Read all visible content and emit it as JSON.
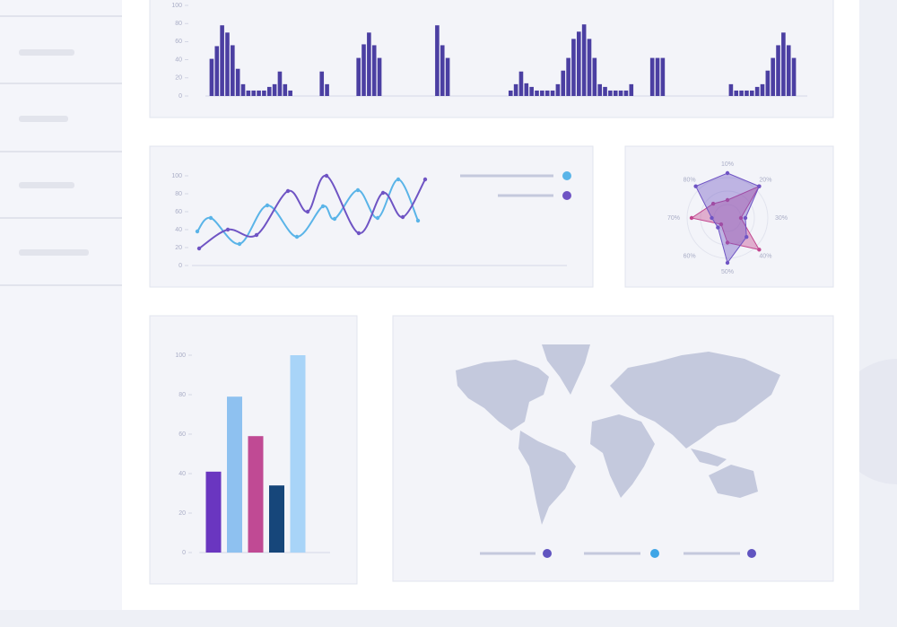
{
  "chart_data": [
    {
      "type": "bar",
      "color": "#4b3fa2",
      "values": [
        41,
        55,
        78,
        70,
        56,
        30,
        13,
        6,
        6,
        6,
        6,
        10,
        13,
        27,
        13,
        6,
        null,
        null,
        null,
        null,
        null,
        27,
        13,
        null,
        null,
        null,
        null,
        null,
        42,
        57,
        70,
        56,
        42,
        null,
        null,
        null,
        null,
        null,
        null,
        null,
        null,
        null,
        null,
        78,
        56,
        42,
        null,
        null,
        null,
        null,
        null,
        null,
        null,
        null,
        null,
        null,
        null,
        6,
        13,
        27,
        14,
        10,
        6,
        6,
        6,
        6,
        13,
        28,
        42,
        63,
        71,
        79,
        63,
        42,
        13,
        10,
        6,
        6,
        6,
        6,
        13,
        null,
        null,
        null,
        42,
        42,
        42,
        null,
        null,
        null,
        null,
        null,
        null,
        null,
        null,
        null,
        null,
        null,
        null,
        13,
        6,
        6,
        6,
        6,
        10,
        13,
        28,
        42,
        56,
        70,
        56,
        42
      ],
      "ylim": [
        0,
        100
      ],
      "yticks": [
        0,
        20,
        40,
        60,
        80,
        100
      ]
    },
    {
      "type": "line",
      "xlim": [
        0,
        260
      ],
      "ylim": [
        0,
        100
      ],
      "yticks": [
        0,
        20,
        40,
        60,
        80,
        100
      ],
      "series": [
        {
          "color": "#5ab4e8",
          "x": [
            2,
            17,
            49,
            80,
            113,
            142,
            155,
            181,
            203,
            226,
            248
          ],
          "values": [
            38,
            53,
            24,
            67,
            32,
            66,
            52,
            84,
            53,
            96,
            50
          ]
        },
        {
          "color": "#6f54c4",
          "x": [
            4,
            36,
            68,
            103,
            125,
            146,
            182,
            209,
            231,
            256
          ],
          "values": [
            19,
            40,
            34,
            83,
            60,
            100,
            36,
            81,
            54,
            96
          ]
        }
      ]
    },
    {
      "type": "radar",
      "categories": [
        "10%",
        "20%",
        "30%",
        "40%",
        "50%",
        "60%",
        "70%",
        "80%"
      ],
      "ylim": [
        0,
        100
      ],
      "series": [
        {
          "color": "#c2478f",
          "values": [
            40,
            100,
            30,
            100,
            55,
            20,
            80,
            45
          ]
        },
        {
          "color": "#6f54c4",
          "values": [
            100,
            100,
            40,
            60,
            100,
            30,
            35,
            100
          ]
        }
      ]
    },
    {
      "type": "bar",
      "colors": [
        "#6a36c0",
        "#8ec1f0",
        "#c04a94",
        "#16467a",
        "#a8d4f8"
      ],
      "values": [
        41,
        79,
        59,
        34,
        100
      ],
      "ylim": [
        0,
        100
      ],
      "yticks": [
        0,
        20,
        40,
        60,
        80,
        100
      ]
    }
  ]
}
